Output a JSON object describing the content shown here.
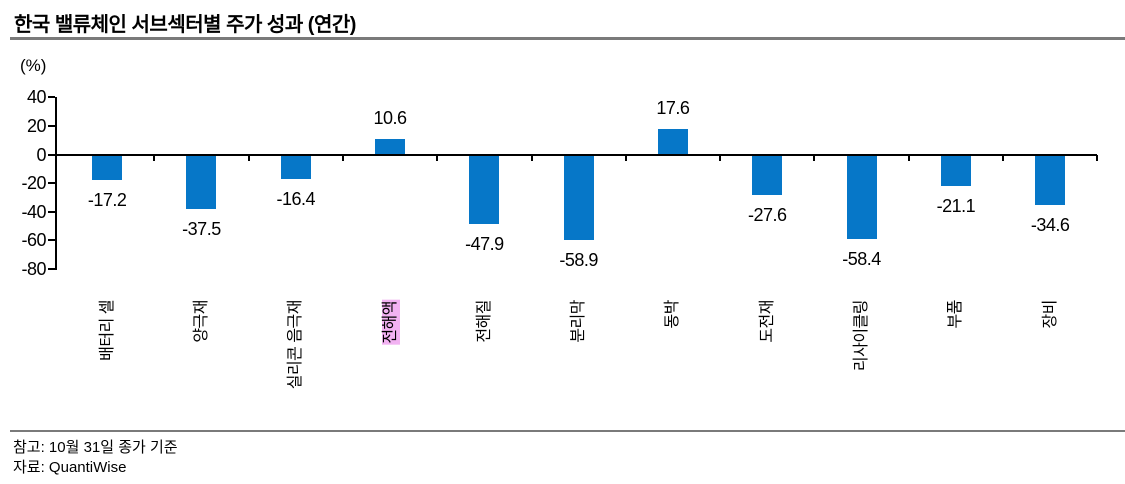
{
  "title": "한국 밸류체인 서브섹터별 주가 성과 (연간)",
  "footer": {
    "note": "참고: 10월 31일 종가 기준",
    "source": "자료: QuantiWise"
  },
  "chart_data": {
    "type": "bar",
    "title": "한국 밸류체인 서브섹터별 주가 성과 (연간)",
    "unit_label": "(%)",
    "categories": [
      "배터리 셀",
      "양극재",
      "실리콘 음극재",
      "전해액",
      "전해질",
      "분리막",
      "동박",
      "도전재",
      "리사이클링",
      "부품",
      "장비"
    ],
    "values": [
      -17.2,
      -37.5,
      -16.4,
      10.6,
      -47.9,
      -58.9,
      17.6,
      -27.6,
      -58.4,
      -21.1,
      -34.6
    ],
    "value_labels": [
      "-17.2",
      "-37.5",
      "-16.4",
      "10.6",
      "-47.9",
      "-58.9",
      "17.6",
      "-27.6",
      "-58.4",
      "-21.1",
      "-34.6"
    ],
    "highlighted_category": "전해액",
    "highlight_color": "#f2b2f2",
    "bar_color": "#0677c8",
    "axis_color": "#000000",
    "rule_color": "#7a7a7a",
    "xlabel": "",
    "ylabel": "(%)",
    "y_ticks": [
      40,
      20,
      0,
      -20,
      -40,
      -60,
      -80
    ],
    "ylim": [
      -80,
      40
    ],
    "grid": false,
    "legend": false
  }
}
